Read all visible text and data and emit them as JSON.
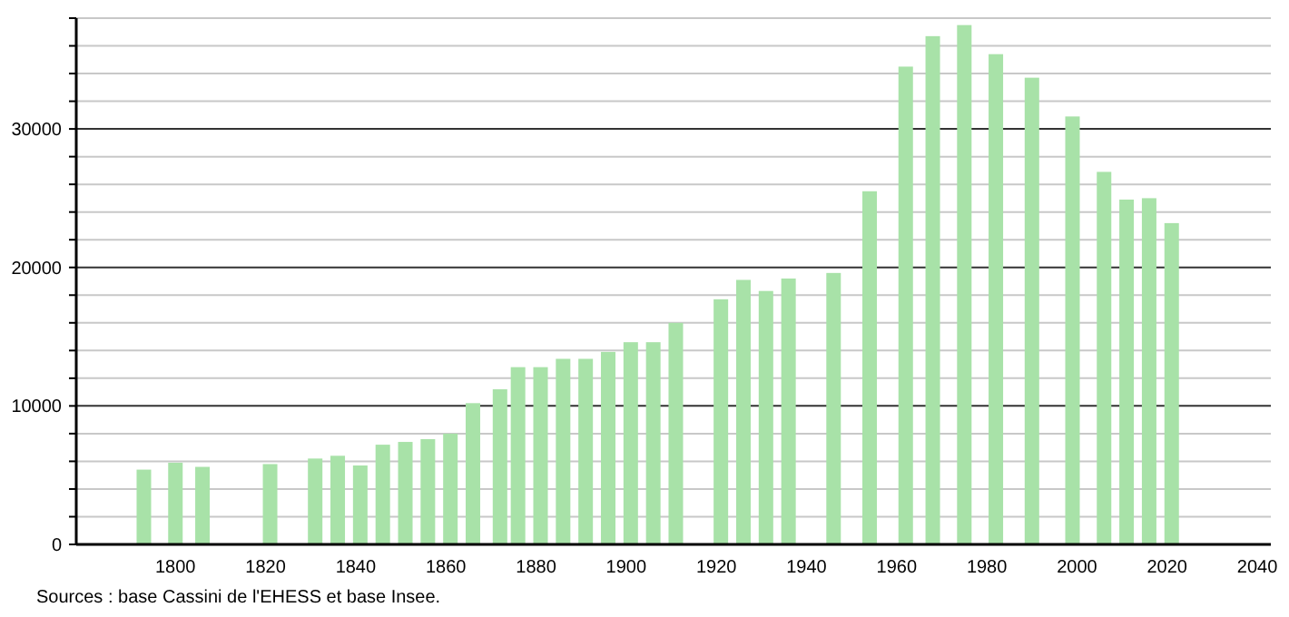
{
  "chart_data": {
    "type": "bar",
    "x": [
      1793,
      1800,
      1806,
      1821,
      1831,
      1836,
      1841,
      1846,
      1851,
      1856,
      1861,
      1866,
      1872,
      1876,
      1881,
      1886,
      1891,
      1896,
      1901,
      1906,
      1911,
      1921,
      1926,
      1931,
      1936,
      1946,
      1954,
      1962,
      1968,
      1975,
      1982,
      1990,
      1999,
      2006,
      2011,
      2016,
      2021
    ],
    "values": [
      5400,
      5900,
      5600,
      5800,
      6200,
      6400,
      5700,
      7200,
      7400,
      7600,
      8000,
      10200,
      11200,
      12800,
      12800,
      13400,
      13400,
      13900,
      14600,
      14600,
      16000,
      17700,
      19100,
      18300,
      19200,
      19600,
      25500,
      34500,
      36700,
      37500,
      35400,
      33700,
      30900,
      26900,
      24900,
      25000,
      23200
    ],
    "color": "#a8e2a8",
    "xlim": [
      1778,
      2043
    ],
    "xticks": [
      1800,
      1820,
      1840,
      1860,
      1880,
      1900,
      1920,
      1940,
      1960,
      1980,
      2000,
      2020,
      2040
    ],
    "ylim": [
      0,
      38000
    ],
    "yticks": [
      0,
      {
        "value": 2000,
        "label": null
      },
      {
        "value": 4000,
        "label": null
      },
      {
        "value": 6000,
        "label": null
      },
      {
        "value": 8000,
        "label": null
      },
      10000,
      {
        "value": 12000,
        "label": null
      },
      {
        "value": 14000,
        "label": null
      },
      {
        "value": 16000,
        "label": null
      },
      {
        "value": 18000,
        "label": null
      },
      20000,
      {
        "value": 22000,
        "label": null
      },
      {
        "value": 24000,
        "label": null
      },
      {
        "value": 26000,
        "label": null
      },
      {
        "value": 28000,
        "label": null
      },
      30000,
      {
        "value": 32000,
        "label": null
      },
      {
        "value": 34000,
        "label": null
      },
      {
        "value": 36000,
        "label": null
      },
      {
        "value": 38000,
        "label": null
      }
    ],
    "grid": "y",
    "annotations": [
      "Sources : base Cassini de l'EHESS et base Insee."
    ]
  }
}
